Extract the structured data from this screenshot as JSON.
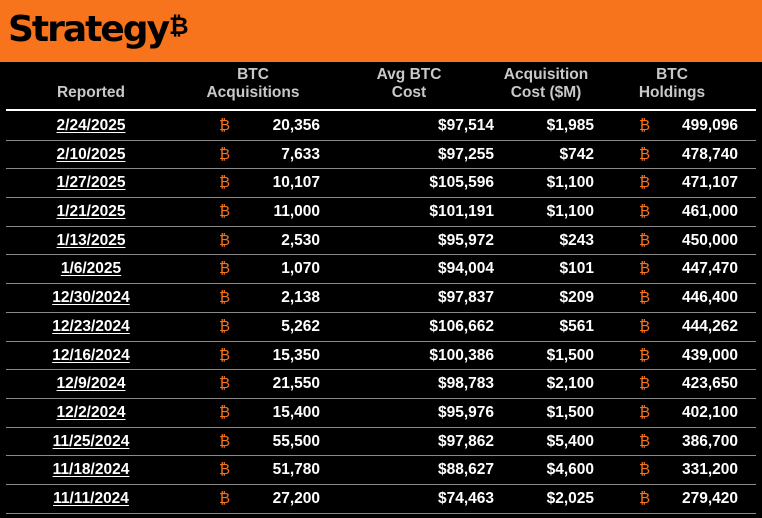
{
  "brand": {
    "name": "Strategy",
    "mark": "₿",
    "accent_color": "#f7731c",
    "background_color": "#000000"
  },
  "table": {
    "columns": [
      {
        "line1": "",
        "line2": "Reported"
      },
      {
        "line1": "BTC",
        "line2": "Acquisitions"
      },
      {
        "line1": "Avg BTC",
        "line2": "Cost"
      },
      {
        "line1": "Acquisition",
        "line2": "Cost ($M)"
      },
      {
        "line1": "BTC",
        "line2": "Holdings"
      }
    ],
    "btc_symbol": "₿",
    "rows": [
      {
        "reported": "2/24/2025",
        "acquisitions": "20,356",
        "avg_cost": "$97,514",
        "cost_m": "$1,985",
        "holdings": "499,096"
      },
      {
        "reported": "2/10/2025",
        "acquisitions": "7,633",
        "avg_cost": "$97,255",
        "cost_m": "$742",
        "holdings": "478,740"
      },
      {
        "reported": "1/27/2025",
        "acquisitions": "10,107",
        "avg_cost": "$105,596",
        "cost_m": "$1,100",
        "holdings": "471,107"
      },
      {
        "reported": "1/21/2025",
        "acquisitions": "11,000",
        "avg_cost": "$101,191",
        "cost_m": "$1,100",
        "holdings": "461,000"
      },
      {
        "reported": "1/13/2025",
        "acquisitions": "2,530",
        "avg_cost": "$95,972",
        "cost_m": "$243",
        "holdings": "450,000"
      },
      {
        "reported": "1/6/2025",
        "acquisitions": "1,070",
        "avg_cost": "$94,004",
        "cost_m": "$101",
        "holdings": "447,470"
      },
      {
        "reported": "12/30/2024",
        "acquisitions": "2,138",
        "avg_cost": "$97,837",
        "cost_m": "$209",
        "holdings": "446,400"
      },
      {
        "reported": "12/23/2024",
        "acquisitions": "5,262",
        "avg_cost": "$106,662",
        "cost_m": "$561",
        "holdings": "444,262"
      },
      {
        "reported": "12/16/2024",
        "acquisitions": "15,350",
        "avg_cost": "$100,386",
        "cost_m": "$1,500",
        "holdings": "439,000"
      },
      {
        "reported": "12/9/2024",
        "acquisitions": "21,550",
        "avg_cost": "$98,783",
        "cost_m": "$2,100",
        "holdings": "423,650"
      },
      {
        "reported": "12/2/2024",
        "acquisitions": "15,400",
        "avg_cost": "$95,976",
        "cost_m": "$1,500",
        "holdings": "402,100"
      },
      {
        "reported": "11/25/2024",
        "acquisitions": "55,500",
        "avg_cost": "$97,862",
        "cost_m": "$5,400",
        "holdings": "386,700"
      },
      {
        "reported": "11/18/2024",
        "acquisitions": "51,780",
        "avg_cost": "$88,627",
        "cost_m": "$4,600",
        "holdings": "331,200"
      },
      {
        "reported": "11/11/2024",
        "acquisitions": "27,200",
        "avg_cost": "$74,463",
        "cost_m": "$2,025",
        "holdings": "279,420"
      }
    ]
  }
}
